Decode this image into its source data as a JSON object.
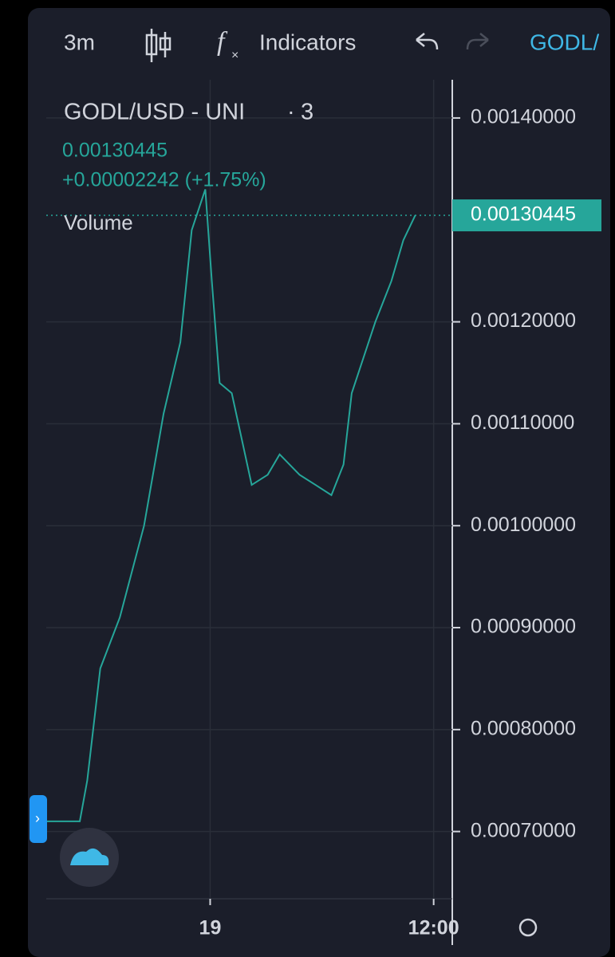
{
  "toolbar": {
    "interval": "3m",
    "indicators": "Indicators",
    "symbol": "GODL/"
  },
  "chart_data": {
    "type": "line",
    "title": "GODL/USD - UNI",
    "interval": "3",
    "last_value": 0.00130445,
    "change_label": "+0.00002242 (+1.75%)",
    "volume_label": "Volume",
    "x": [
      -8.8,
      -7.0,
      -6.6,
      -5.9,
      -4.85,
      -3.55,
      -2.5,
      -1.6,
      -0.99,
      -0.26,
      0.09,
      0.51,
      1.16,
      2.23,
      3.09,
      3.73,
      4.8,
      5.66,
      6.51,
      7.16,
      7.6,
      8.87,
      9.73,
      10.37,
      11.01
    ],
    "series": [
      {
        "name": "GODL/USD",
        "color": "#26a69a",
        "values": [
          0.00071,
          0.00071,
          0.00075,
          0.00086,
          0.00091,
          0.001,
          0.00111,
          0.00118,
          0.00129,
          0.00133,
          0.00124,
          0.00114,
          0.00113,
          0.00104,
          0.00105,
          0.00107,
          0.00105,
          0.00104,
          0.00103,
          0.00106,
          0.00113,
          0.0012,
          0.00124,
          0.00128,
          0.00130445
        ]
      }
    ],
    "xlim": [
      -8.8,
      13.0
    ],
    "xticks": [
      {
        "value": 0,
        "label": "19"
      },
      {
        "value": 12,
        "label": "12:00"
      }
    ],
    "ylim": [
      0.000634,
      0.0014375
    ],
    "yticks": [
      {
        "value": 0.0007,
        "label": "0.00070000"
      },
      {
        "value": 0.0008,
        "label": "0.00080000"
      },
      {
        "value": 0.0009,
        "label": "0.00090000"
      },
      {
        "value": 0.001,
        "label": "0.00100000"
      },
      {
        "value": 0.0011,
        "label": "0.00110000"
      },
      {
        "value": 0.0012,
        "label": "0.00120000"
      },
      {
        "value": 0.0014,
        "label": "0.00140000"
      }
    ],
    "grid": true
  }
}
